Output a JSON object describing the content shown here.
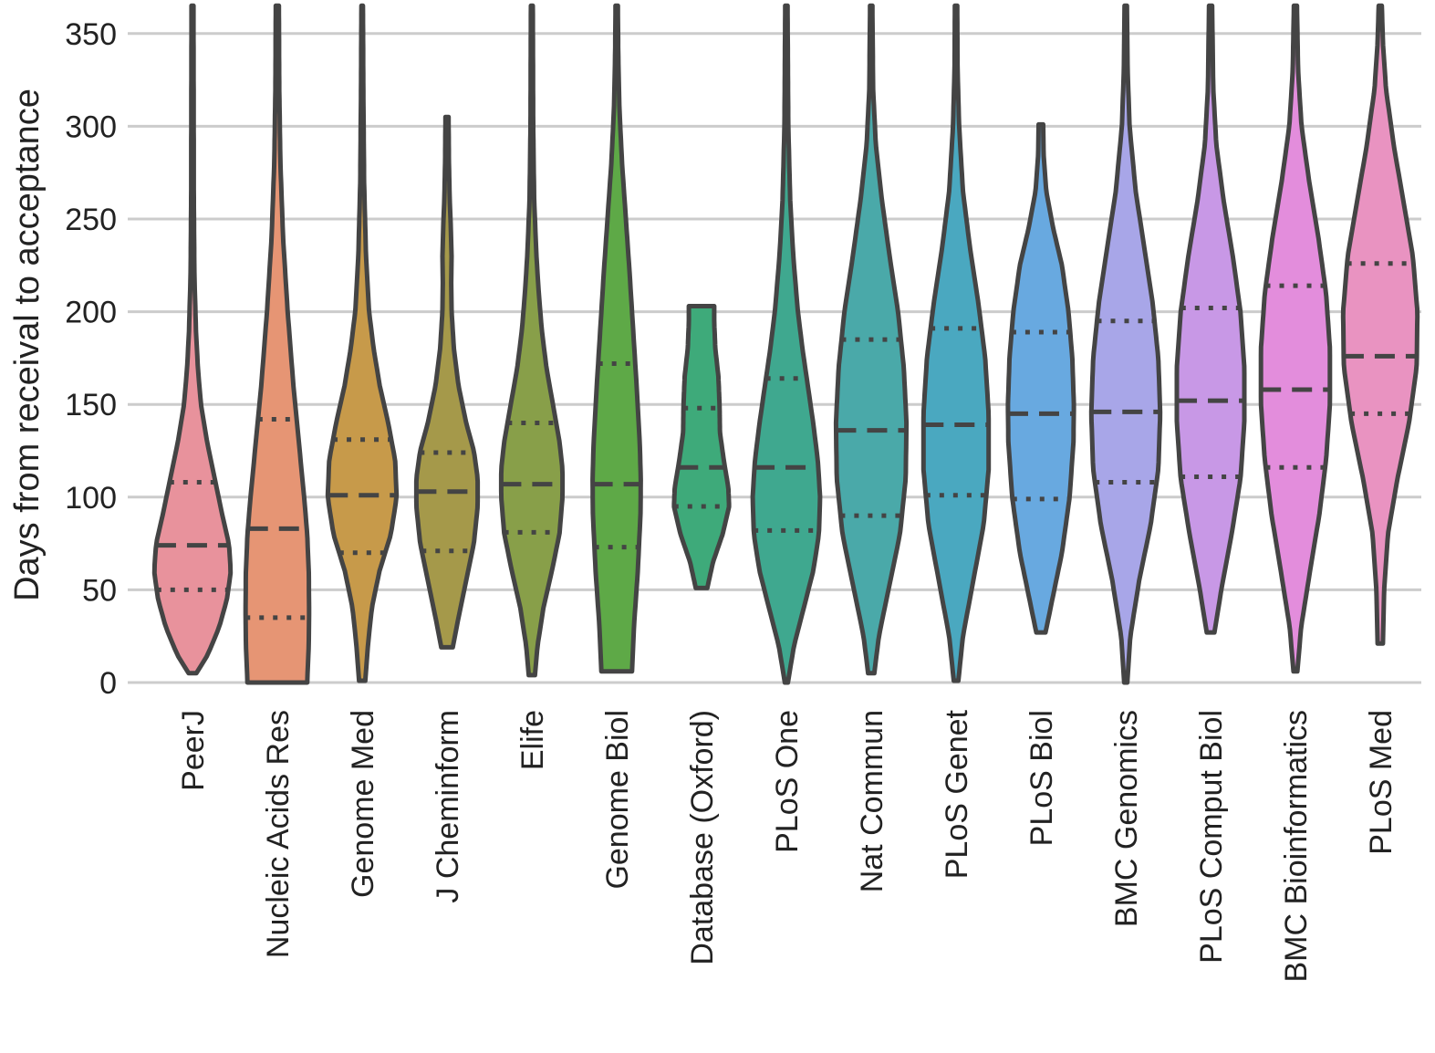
{
  "chart_data": {
    "type": "violin",
    "title": "",
    "xlabel": "",
    "ylabel": "Days from receival to acceptance",
    "ylim": [
      0,
      365
    ],
    "yticks": [
      0,
      50,
      100,
      150,
      200,
      250,
      300,
      350
    ],
    "grid": "horizontal",
    "inner": "quartiles",
    "series": [
      {
        "name": "PeerJ",
        "color": "#e8929c",
        "min": 5,
        "max": 365,
        "q1": 50,
        "median": 74,
        "q3": 108,
        "profile": [
          [
            5,
            0.1
          ],
          [
            15,
            0.4
          ],
          [
            30,
            0.7
          ],
          [
            45,
            0.9
          ],
          [
            60,
            1.0
          ],
          [
            75,
            0.95
          ],
          [
            90,
            0.78
          ],
          [
            110,
            0.58
          ],
          [
            130,
            0.38
          ],
          [
            150,
            0.22
          ],
          [
            170,
            0.14
          ],
          [
            190,
            0.09
          ],
          [
            220,
            0.05
          ],
          [
            260,
            0.035
          ],
          [
            320,
            0.03
          ],
          [
            365,
            0.025
          ]
        ]
      },
      {
        "name": "Nucleic Acids Res",
        "color": "#e69574",
        "min": 0,
        "max": 365,
        "q1": 35,
        "median": 83,
        "q3": 142,
        "profile": [
          [
            0,
            0.78
          ],
          [
            20,
            0.82
          ],
          [
            40,
            0.83
          ],
          [
            60,
            0.82
          ],
          [
            80,
            0.78
          ],
          [
            100,
            0.7
          ],
          [
            130,
            0.56
          ],
          [
            160,
            0.42
          ],
          [
            200,
            0.27
          ],
          [
            240,
            0.15
          ],
          [
            280,
            0.08
          ],
          [
            320,
            0.05
          ],
          [
            365,
            0.04
          ]
        ]
      },
      {
        "name": "Genome Med",
        "color": "#c79a4a",
        "min": 1,
        "max": 365,
        "q1": 70,
        "median": 101,
        "q3": 131,
        "profile": [
          [
            1,
            0.08
          ],
          [
            20,
            0.15
          ],
          [
            40,
            0.25
          ],
          [
            60,
            0.45
          ],
          [
            80,
            0.75
          ],
          [
            100,
            0.9
          ],
          [
            120,
            0.86
          ],
          [
            140,
            0.68
          ],
          [
            160,
            0.46
          ],
          [
            180,
            0.3
          ],
          [
            200,
            0.18
          ],
          [
            230,
            0.1
          ],
          [
            270,
            0.05
          ],
          [
            320,
            0.03
          ],
          [
            365,
            0.02
          ]
        ]
      },
      {
        "name": "J Cheminform",
        "color": "#a5994a",
        "min": 19,
        "max": 305,
        "q1": 71,
        "median": 103,
        "q3": 124,
        "profile": [
          [
            19,
            0.15
          ],
          [
            35,
            0.3
          ],
          [
            55,
            0.5
          ],
          [
            75,
            0.7
          ],
          [
            95,
            0.8
          ],
          [
            110,
            0.8
          ],
          [
            125,
            0.7
          ],
          [
            140,
            0.5
          ],
          [
            160,
            0.3
          ],
          [
            180,
            0.18
          ],
          [
            200,
            0.12
          ],
          [
            215,
            0.11
          ],
          [
            230,
            0.12
          ],
          [
            245,
            0.1
          ],
          [
            260,
            0.07
          ],
          [
            280,
            0.05
          ],
          [
            305,
            0.04
          ]
        ]
      },
      {
        "name": "Elife",
        "color": "#889f49",
        "min": 4,
        "max": 365,
        "q1": 81,
        "median": 107,
        "q3": 140,
        "profile": [
          [
            4,
            0.08
          ],
          [
            20,
            0.15
          ],
          [
            40,
            0.3
          ],
          [
            60,
            0.52
          ],
          [
            80,
            0.72
          ],
          [
            100,
            0.8
          ],
          [
            115,
            0.8
          ],
          [
            130,
            0.72
          ],
          [
            150,
            0.55
          ],
          [
            170,
            0.38
          ],
          [
            190,
            0.26
          ],
          [
            210,
            0.18
          ],
          [
            230,
            0.12
          ],
          [
            260,
            0.06
          ],
          [
            300,
            0.035
          ],
          [
            365,
            0.025
          ]
        ]
      },
      {
        "name": "Genome Biol",
        "color": "#5ea947",
        "min": 6,
        "max": 365,
        "q1": 73,
        "median": 107,
        "q3": 172,
        "profile": [
          [
            6,
            0.4
          ],
          [
            30,
            0.45
          ],
          [
            60,
            0.55
          ],
          [
            90,
            0.62
          ],
          [
            110,
            0.63
          ],
          [
            130,
            0.6
          ],
          [
            160,
            0.52
          ],
          [
            190,
            0.43
          ],
          [
            220,
            0.34
          ],
          [
            250,
            0.24
          ],
          [
            280,
            0.14
          ],
          [
            310,
            0.07
          ],
          [
            340,
            0.04
          ],
          [
            365,
            0.03
          ]
        ]
      },
      {
        "name": "Database (Oxford)",
        "color": "#3eaa7a",
        "min": 51,
        "max": 203,
        "q1": 95,
        "median": 116,
        "q3": 148,
        "profile": [
          [
            51,
            0.15
          ],
          [
            65,
            0.3
          ],
          [
            80,
            0.55
          ],
          [
            95,
            0.72
          ],
          [
            105,
            0.7
          ],
          [
            120,
            0.58
          ],
          [
            135,
            0.48
          ],
          [
            150,
            0.47
          ],
          [
            165,
            0.44
          ],
          [
            180,
            0.36
          ],
          [
            195,
            0.33
          ],
          [
            203,
            0.33
          ]
        ]
      },
      {
        "name": "PLoS One",
        "color": "#3fa88f",
        "min": 0,
        "max": 365,
        "q1": 82,
        "median": 116,
        "q3": 164,
        "profile": [
          [
            0,
            0.04
          ],
          [
            20,
            0.2
          ],
          [
            40,
            0.45
          ],
          [
            60,
            0.7
          ],
          [
            80,
            0.85
          ],
          [
            100,
            0.88
          ],
          [
            120,
            0.82
          ],
          [
            140,
            0.7
          ],
          [
            160,
            0.56
          ],
          [
            180,
            0.42
          ],
          [
            200,
            0.3
          ],
          [
            230,
            0.18
          ],
          [
            260,
            0.1
          ],
          [
            300,
            0.05
          ],
          [
            365,
            0.03
          ]
        ]
      },
      {
        "name": "Nat Commun",
        "color": "#4aa9a9",
        "min": 5,
        "max": 365,
        "q1": 90,
        "median": 136,
        "q3": 185,
        "profile": [
          [
            5,
            0.08
          ],
          [
            25,
            0.2
          ],
          [
            50,
            0.45
          ],
          [
            80,
            0.75
          ],
          [
            110,
            0.9
          ],
          [
            140,
            0.92
          ],
          [
            170,
            0.85
          ],
          [
            200,
            0.7
          ],
          [
            230,
            0.48
          ],
          [
            260,
            0.28
          ],
          [
            290,
            0.12
          ],
          [
            320,
            0.05
          ],
          [
            365,
            0.03
          ]
        ]
      },
      {
        "name": "PLoS Genet",
        "color": "#4aa8c0",
        "min": 1,
        "max": 365,
        "q1": 101,
        "median": 139,
        "q3": 191,
        "profile": [
          [
            1,
            0.06
          ],
          [
            25,
            0.18
          ],
          [
            55,
            0.45
          ],
          [
            85,
            0.72
          ],
          [
            115,
            0.85
          ],
          [
            145,
            0.85
          ],
          [
            175,
            0.76
          ],
          [
            205,
            0.58
          ],
          [
            235,
            0.36
          ],
          [
            265,
            0.18
          ],
          [
            300,
            0.08
          ],
          [
            330,
            0.04
          ],
          [
            365,
            0.03
          ]
        ]
      },
      {
        "name": "PLoS Biol",
        "color": "#68a9e0",
        "min": 27,
        "max": 301,
        "q1": 99,
        "median": 145,
        "q3": 189,
        "profile": [
          [
            27,
            0.12
          ],
          [
            45,
            0.3
          ],
          [
            70,
            0.55
          ],
          [
            100,
            0.75
          ],
          [
            130,
            0.85
          ],
          [
            150,
            0.86
          ],
          [
            175,
            0.82
          ],
          [
            200,
            0.72
          ],
          [
            225,
            0.55
          ],
          [
            245,
            0.32
          ],
          [
            265,
            0.14
          ],
          [
            285,
            0.07
          ],
          [
            301,
            0.06
          ]
        ]
      },
      {
        "name": "BMC Genomics",
        "color": "#a8a6e8",
        "min": 0,
        "max": 365,
        "q1": 108,
        "median": 146,
        "q3": 195,
        "profile": [
          [
            0,
            0.04
          ],
          [
            25,
            0.12
          ],
          [
            55,
            0.35
          ],
          [
            85,
            0.65
          ],
          [
            115,
            0.85
          ],
          [
            145,
            0.9
          ],
          [
            175,
            0.85
          ],
          [
            205,
            0.7
          ],
          [
            235,
            0.48
          ],
          [
            265,
            0.26
          ],
          [
            300,
            0.1
          ],
          [
            330,
            0.05
          ],
          [
            365,
            0.03
          ]
        ]
      },
      {
        "name": "PLoS Comput Biol",
        "color": "#c898e6",
        "min": 27,
        "max": 365,
        "q1": 111,
        "median": 152,
        "q3": 202,
        "profile": [
          [
            27,
            0.1
          ],
          [
            50,
            0.28
          ],
          [
            80,
            0.55
          ],
          [
            110,
            0.78
          ],
          [
            140,
            0.88
          ],
          [
            170,
            0.88
          ],
          [
            200,
            0.78
          ],
          [
            230,
            0.58
          ],
          [
            260,
            0.34
          ],
          [
            290,
            0.15
          ],
          [
            320,
            0.07
          ],
          [
            365,
            0.04
          ]
        ]
      },
      {
        "name": "BMC Bioinformatics",
        "color": "#e38ddc",
        "min": 6,
        "max": 365,
        "q1": 116,
        "median": 158,
        "q3": 214,
        "profile": [
          [
            6,
            0.05
          ],
          [
            30,
            0.15
          ],
          [
            60,
            0.38
          ],
          [
            90,
            0.62
          ],
          [
            120,
            0.8
          ],
          [
            150,
            0.9
          ],
          [
            180,
            0.9
          ],
          [
            210,
            0.8
          ],
          [
            240,
            0.6
          ],
          [
            270,
            0.36
          ],
          [
            300,
            0.16
          ],
          [
            330,
            0.07
          ],
          [
            365,
            0.04
          ]
        ]
      },
      {
        "name": "PLoS Med",
        "color": "#e993c1",
        "min": 21,
        "max": 365,
        "q1": 145,
        "median": 176,
        "q3": 226,
        "profile": [
          [
            21,
            0.07
          ],
          [
            50,
            0.1
          ],
          [
            80,
            0.2
          ],
          [
            110,
            0.45
          ],
          [
            140,
            0.75
          ],
          [
            170,
            0.95
          ],
          [
            200,
            0.97
          ],
          [
            230,
            0.85
          ],
          [
            260,
            0.6
          ],
          [
            290,
            0.35
          ],
          [
            320,
            0.15
          ],
          [
            345,
            0.07
          ],
          [
            365,
            0.04
          ]
        ]
      }
    ]
  }
}
